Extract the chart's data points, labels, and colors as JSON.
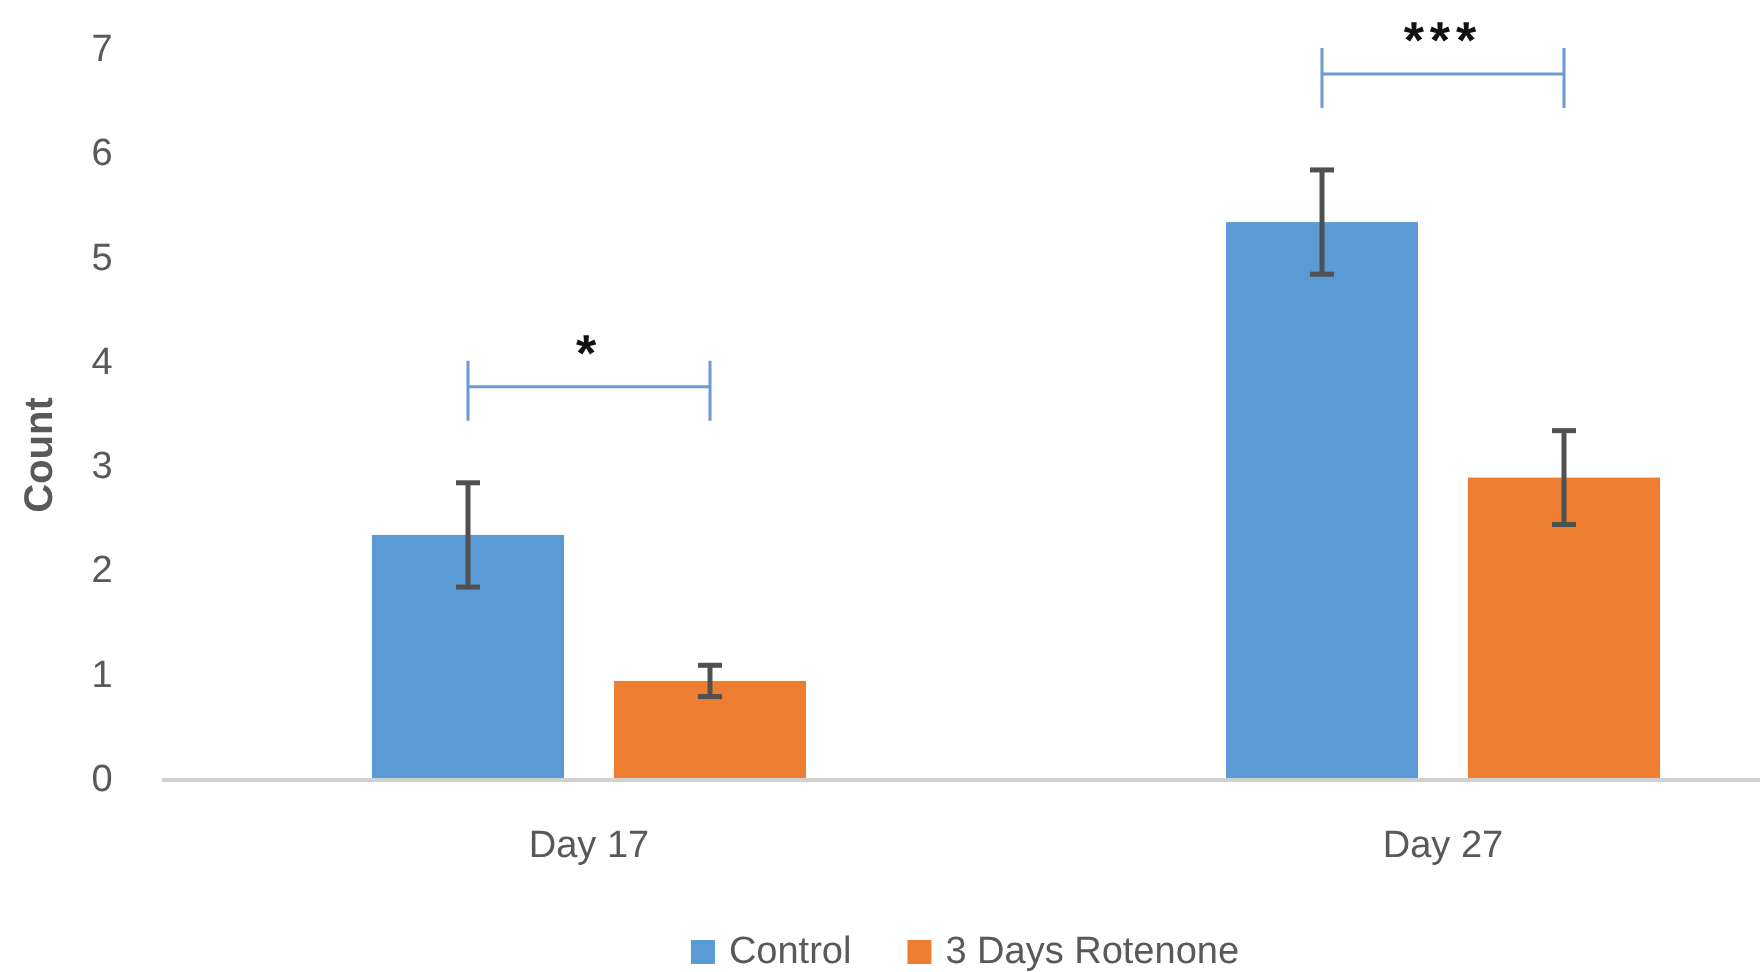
{
  "chart_data": {
    "type": "bar",
    "ylabel": "Count",
    "categories": [
      "Day 17",
      "Day 27"
    ],
    "series": [
      {
        "name": "Control",
        "color": "#5b9bd5",
        "values": [
          2.35,
          5.35
        ],
        "errors": [
          0.5,
          0.5
        ]
      },
      {
        "name": "3 Days Rotenone",
        "color": "#ed7d31",
        "values": [
          0.95,
          2.9
        ],
        "errors": [
          0.15,
          0.45
        ]
      }
    ],
    "ylim": [
      0,
      7
    ],
    "yticks": [
      0,
      1,
      2,
      3,
      4,
      5,
      6,
      7
    ],
    "grid": false,
    "legend": "bottom",
    "annotations": [
      "*",
      "***"
    ]
  }
}
